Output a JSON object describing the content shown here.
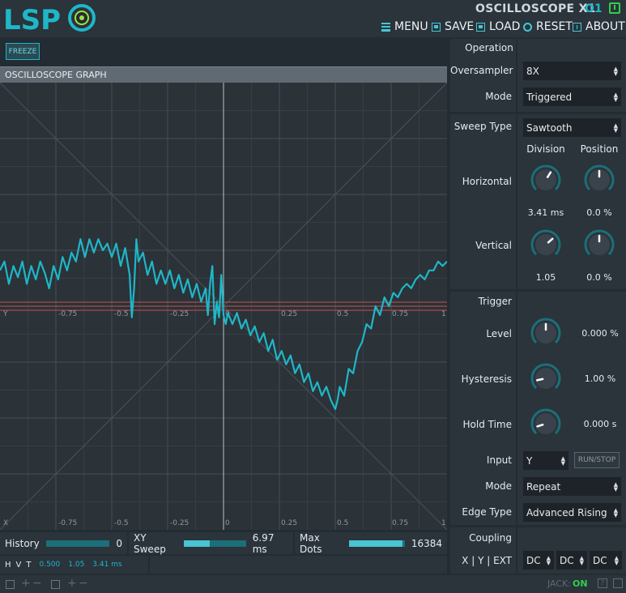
{
  "header": {
    "logo_text": "LSP",
    "plugin_title": "OSCILLOSCOPE X1",
    "plugin_code": "O1",
    "menu": [
      {
        "id": "menu",
        "icon": "menu-icon",
        "label": "MENU"
      },
      {
        "id": "save",
        "icon": "save-icon",
        "label": "SAVE"
      },
      {
        "id": "load",
        "icon": "load-icon",
        "label": "LOAD"
      },
      {
        "id": "reset",
        "icon": "reset-icon",
        "label": "RESET"
      },
      {
        "id": "about",
        "icon": "about-icon",
        "label": "ABOUT"
      }
    ]
  },
  "freeze_label": "FREEZE",
  "graph": {
    "title": "OSCILLOSCOPE GRAPH",
    "axis_ticks_mid": [
      "Y",
      "-0.75",
      "-0.5",
      "-0.25",
      "0",
      "0.25",
      "0.5",
      "0.75",
      "1"
    ],
    "axis_ticks_bottom": [
      "X",
      "-0.75",
      "-0.5",
      "-0.25",
      "0",
      "0.25",
      "0.5",
      "0.75",
      "1"
    ],
    "trace_color": "#1eb7c8",
    "trigger_line_color": "#c0524f",
    "trace": [
      [
        -1.0,
        0.16
      ],
      [
        -0.98,
        0.2
      ],
      [
        -0.96,
        0.1
      ],
      [
        -0.94,
        0.18
      ],
      [
        -0.92,
        0.13
      ],
      [
        -0.9,
        0.2
      ],
      [
        -0.88,
        0.1
      ],
      [
        -0.86,
        0.18
      ],
      [
        -0.84,
        0.12
      ],
      [
        -0.82,
        0.2
      ],
      [
        -0.8,
        0.15
      ],
      [
        -0.78,
        0.08
      ],
      [
        -0.76,
        0.18
      ],
      [
        -0.74,
        0.12
      ],
      [
        -0.72,
        0.22
      ],
      [
        -0.7,
        0.16
      ],
      [
        -0.68,
        0.24
      ],
      [
        -0.66,
        0.2
      ],
      [
        -0.64,
        0.3
      ],
      [
        -0.62,
        0.22
      ],
      [
        -0.6,
        0.3
      ],
      [
        -0.58,
        0.24
      ],
      [
        -0.56,
        0.3
      ],
      [
        -0.54,
        0.25
      ],
      [
        -0.52,
        0.28
      ],
      [
        -0.5,
        0.22
      ],
      [
        -0.48,
        0.28
      ],
      [
        -0.46,
        0.18
      ],
      [
        -0.44,
        0.26
      ],
      [
        -0.42,
        0.14
      ],
      [
        -0.41,
        -0.05
      ],
      [
        -0.4,
        0.08
      ],
      [
        -0.39,
        0.3
      ],
      [
        -0.38,
        0.2
      ],
      [
        -0.36,
        0.24
      ],
      [
        -0.34,
        0.14
      ],
      [
        -0.32,
        0.2
      ],
      [
        -0.3,
        0.1
      ],
      [
        -0.28,
        0.16
      ],
      [
        -0.26,
        0.1
      ],
      [
        -0.24,
        0.16
      ],
      [
        -0.22,
        0.08
      ],
      [
        -0.2,
        0.14
      ],
      [
        -0.18,
        0.06
      ],
      [
        -0.16,
        0.12
      ],
      [
        -0.14,
        0.04
      ],
      [
        -0.12,
        0.1
      ],
      [
        -0.1,
        0.02
      ],
      [
        -0.08,
        0.08
      ],
      [
        -0.07,
        -0.04
      ],
      [
        -0.06,
        0.1
      ],
      [
        -0.05,
        0.18
      ],
      [
        -0.04,
        -0.08
      ],
      [
        -0.03,
        0.02
      ],
      [
        -0.02,
        -0.05
      ],
      [
        -0.01,
        0.14
      ],
      [
        0.0,
        -0.04
      ],
      [
        0.01,
        -0.08
      ],
      [
        0.02,
        -0.03
      ],
      [
        0.04,
        -0.08
      ],
      [
        0.06,
        -0.03
      ],
      [
        0.08,
        -0.1
      ],
      [
        0.1,
        -0.06
      ],
      [
        0.12,
        -0.13
      ],
      [
        0.14,
        -0.09
      ],
      [
        0.16,
        -0.16
      ],
      [
        0.18,
        -0.12
      ],
      [
        0.2,
        -0.2
      ],
      [
        0.22,
        -0.15
      ],
      [
        0.24,
        -0.24
      ],
      [
        0.26,
        -0.2
      ],
      [
        0.28,
        -0.26
      ],
      [
        0.3,
        -0.22
      ],
      [
        0.32,
        -0.3
      ],
      [
        0.34,
        -0.26
      ],
      [
        0.36,
        -0.34
      ],
      [
        0.38,
        -0.3
      ],
      [
        0.4,
        -0.38
      ],
      [
        0.42,
        -0.34
      ],
      [
        0.44,
        -0.4
      ],
      [
        0.46,
        -0.36
      ],
      [
        0.48,
        -0.42
      ],
      [
        0.5,
        -0.46
      ],
      [
        0.51,
        -0.42
      ],
      [
        0.52,
        -0.36
      ],
      [
        0.54,
        -0.4
      ],
      [
        0.56,
        -0.28
      ],
      [
        0.58,
        -0.3
      ],
      [
        0.6,
        -0.2
      ],
      [
        0.62,
        -0.16
      ],
      [
        0.64,
        -0.08
      ],
      [
        0.66,
        -0.1
      ],
      [
        0.68,
        0.0
      ],
      [
        0.7,
        -0.04
      ],
      [
        0.72,
        0.04
      ],
      [
        0.74,
        0.0
      ],
      [
        0.76,
        0.06
      ],
      [
        0.78,
        0.04
      ],
      [
        0.8,
        0.08
      ],
      [
        0.82,
        0.1
      ],
      [
        0.84,
        0.08
      ],
      [
        0.86,
        0.12
      ],
      [
        0.88,
        0.14
      ],
      [
        0.9,
        0.12
      ],
      [
        0.92,
        0.16
      ],
      [
        0.94,
        0.16
      ],
      [
        0.96,
        0.2
      ],
      [
        0.98,
        0.18
      ],
      [
        1.0,
        0.2
      ]
    ]
  },
  "bottom": {
    "history": {
      "label": "History",
      "value": "0",
      "level": 0.0
    },
    "xy_sweep": {
      "label": "XY Sweep",
      "value": "6.97 ms",
      "level": 0.42
    },
    "max_dots": {
      "label": "Max Dots",
      "value": "16384",
      "level": 0.96
    },
    "hvt": {
      "h": "H",
      "v": "V",
      "t": "T",
      "values": [
        "0.500",
        "1.05",
        "3.41 ms"
      ]
    }
  },
  "operation": {
    "title": "Operation",
    "oversampler_label": "Oversampler",
    "oversampler_value": "8X",
    "mode_label": "Mode",
    "mode_value": "Triggered"
  },
  "sweep": {
    "type_label": "Sweep Type",
    "type_value": "Sawtooth",
    "division_label": "Division",
    "position_label": "Position",
    "horizontal_label": "Horizontal",
    "vertical_label": "Vertical",
    "h_division": {
      "value": "3.41 ms",
      "level": 0.62
    },
    "h_position": {
      "value": "0.0 %",
      "level": 0.5
    },
    "v_division": {
      "value": "1.05",
      "level": 0.68
    },
    "v_position": {
      "value": "0.0 %",
      "level": 0.5
    }
  },
  "trigger": {
    "title": "Trigger",
    "level_label": "Level",
    "level": {
      "value": "0.000 %",
      "level": 0.5
    },
    "hysteresis_label": "Hysteresis",
    "hysteresis": {
      "value": "1.00 %",
      "level": 0.12
    },
    "hold_label": "Hold Time",
    "hold": {
      "value": "0.000 s",
      "level": 0.1
    },
    "input_label": "Input",
    "input_value": "Y",
    "run_stop_label": "RUN/STOP",
    "mode_label": "Mode",
    "mode_value": "Repeat",
    "edge_label": "Edge Type",
    "edge_value": "Advanced Rising"
  },
  "coupling": {
    "title": "Coupling",
    "channels_label": "X | Y | EXT",
    "values": [
      "DC",
      "DC",
      "DC"
    ]
  },
  "footer": {
    "jack_label": "JACK:",
    "jack_status": "ON",
    "help_label": "?"
  }
}
